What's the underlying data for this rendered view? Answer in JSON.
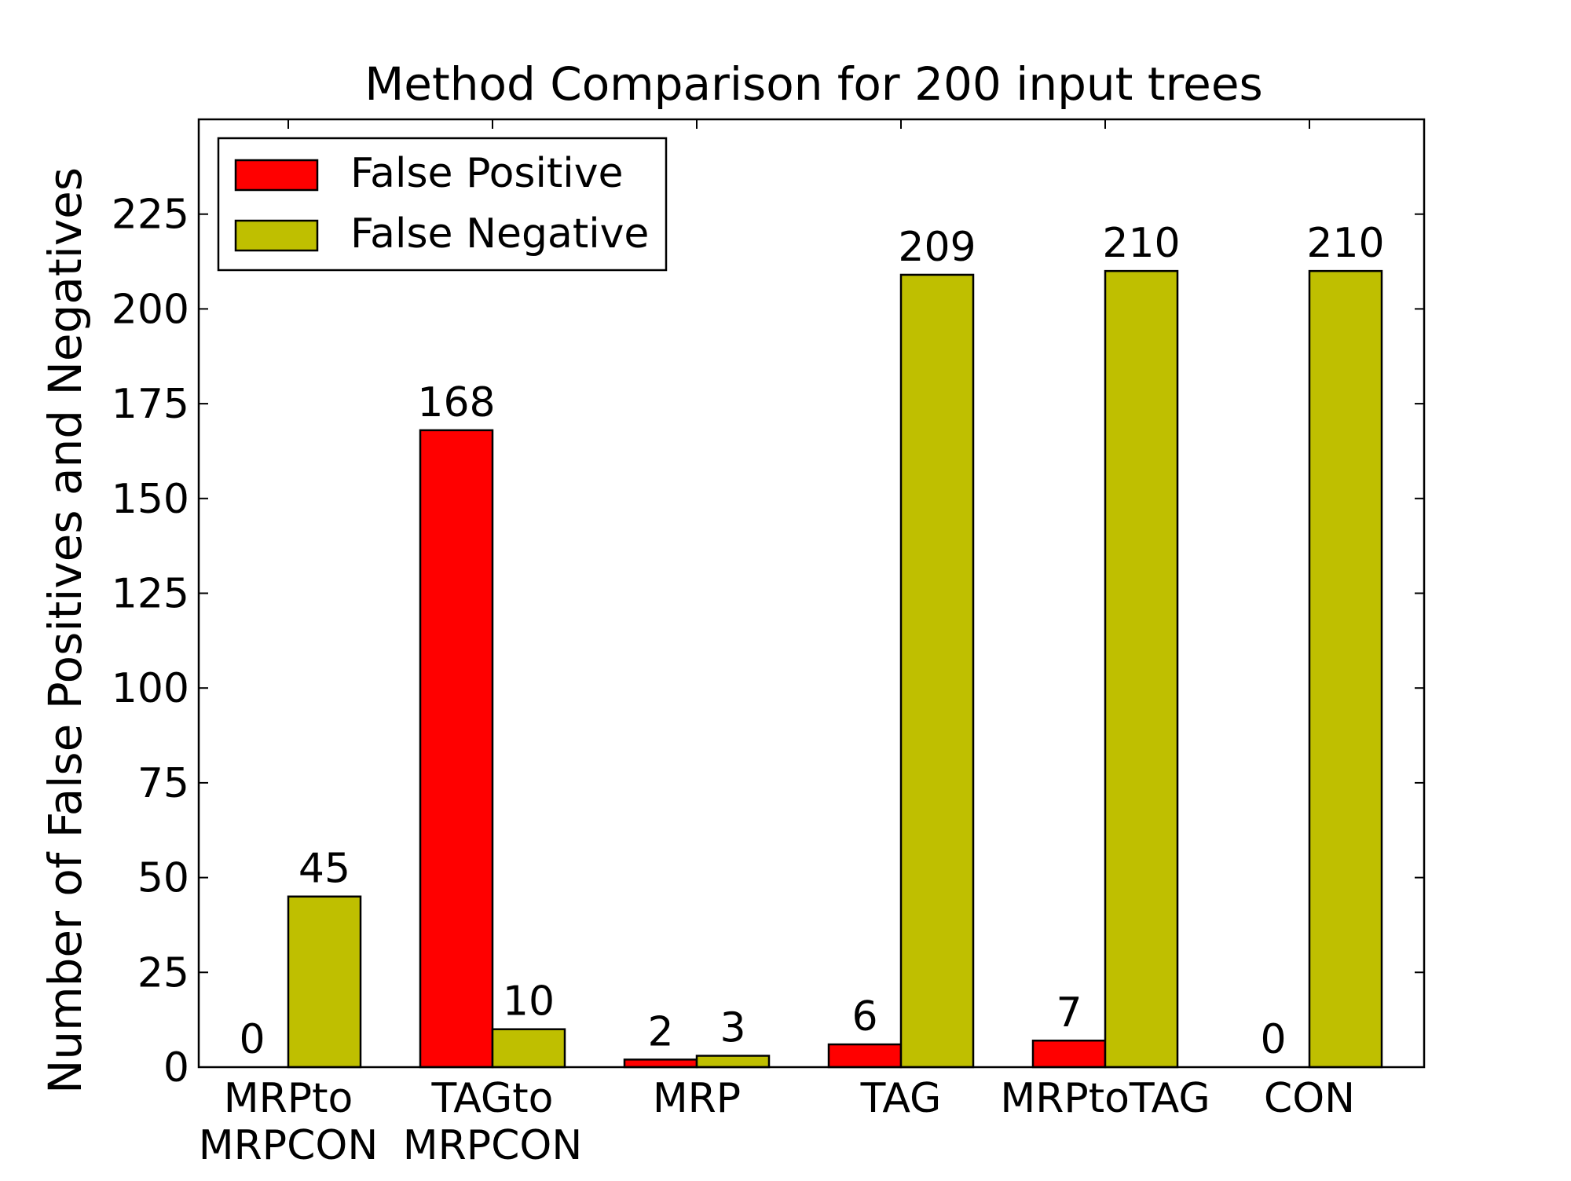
{
  "chart_data": {
    "type": "bar",
    "title": "Method Comparison for 200 input trees",
    "xlabel": "",
    "ylabel": "Number of False Positives and Negatives",
    "categories": [
      [
        "MRPto",
        "MRPCON"
      ],
      [
        "TAGto",
        "MRPCON"
      ],
      [
        "MRP"
      ],
      [
        "TAG"
      ],
      [
        "MRPtoTAG"
      ],
      [
        "CON"
      ]
    ],
    "series": [
      {
        "name": "False Positive",
        "color": "#ff0000",
        "values": [
          0,
          168,
          2,
          6,
          7,
          0
        ]
      },
      {
        "name": "False Negative",
        "color": "#bfbf00",
        "values": [
          45,
          10,
          3,
          209,
          210,
          210
        ]
      }
    ],
    "ylim": [
      0,
      250
    ],
    "yticks": [
      0,
      25,
      50,
      75,
      100,
      125,
      150,
      175,
      200,
      225
    ],
    "grid": false,
    "legend": "top-left",
    "data_labels": true
  }
}
